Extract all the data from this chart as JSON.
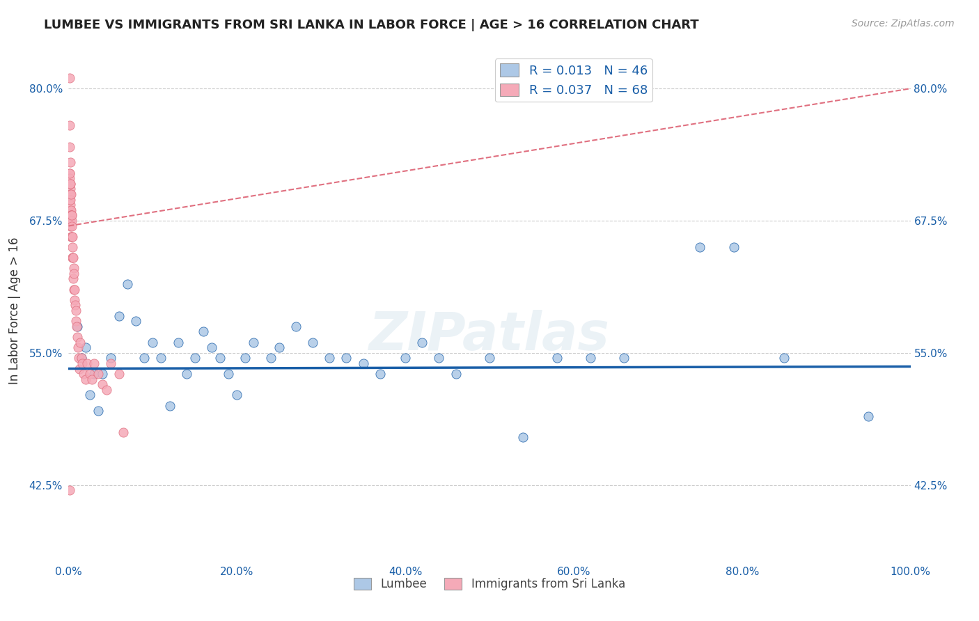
{
  "title": "LUMBEE VS IMMIGRANTS FROM SRI LANKA IN LABOR FORCE | AGE > 16 CORRELATION CHART",
  "source_text": "Source: ZipAtlas.com",
  "ylabel": "In Labor Force | Age > 16",
  "xlim": [
    0.0,
    1.0
  ],
  "ylim": [
    0.355,
    0.825
  ],
  "yticks": [
    0.425,
    0.55,
    0.675,
    0.8
  ],
  "ytick_labels": [
    "42.5%",
    "55.0%",
    "67.5%",
    "80.0%"
  ],
  "xticks": [
    0.0,
    0.2,
    0.4,
    0.6,
    0.8,
    1.0
  ],
  "xtick_labels": [
    "0.0%",
    "20.0%",
    "40.0%",
    "60.0%",
    "80.0%",
    "100.0%"
  ],
  "legend_labels": [
    "Lumbee",
    "Immigrants from Sri Lanka"
  ],
  "r_blue": 0.013,
  "n_blue": 46,
  "r_pink": 0.037,
  "n_pink": 68,
  "blue_color": "#adc8e6",
  "pink_color": "#f5aab8",
  "blue_line_color": "#1a5fa8",
  "pink_line_color": "#e07080",
  "watermark": "ZIPatlas",
  "blue_line_y0": 0.535,
  "blue_line_y1": 0.537,
  "pink_line_y0": 0.67,
  "pink_line_y1": 0.8,
  "blue_scatter_x": [
    0.01,
    0.015,
    0.02,
    0.025,
    0.03,
    0.035,
    0.04,
    0.05,
    0.06,
    0.07,
    0.08,
    0.09,
    0.1,
    0.11,
    0.12,
    0.13,
    0.14,
    0.15,
    0.16,
    0.17,
    0.18,
    0.19,
    0.2,
    0.21,
    0.22,
    0.24,
    0.25,
    0.27,
    0.29,
    0.31,
    0.33,
    0.35,
    0.37,
    0.4,
    0.42,
    0.44,
    0.46,
    0.5,
    0.54,
    0.58,
    0.62,
    0.66,
    0.75,
    0.79,
    0.85,
    0.95
  ],
  "blue_scatter_y": [
    0.575,
    0.545,
    0.555,
    0.51,
    0.53,
    0.495,
    0.53,
    0.545,
    0.585,
    0.615,
    0.58,
    0.545,
    0.56,
    0.545,
    0.5,
    0.56,
    0.53,
    0.545,
    0.57,
    0.555,
    0.545,
    0.53,
    0.51,
    0.545,
    0.56,
    0.545,
    0.555,
    0.575,
    0.56,
    0.545,
    0.545,
    0.54,
    0.53,
    0.545,
    0.56,
    0.545,
    0.53,
    0.545,
    0.47,
    0.545,
    0.545,
    0.545,
    0.65,
    0.65,
    0.545,
    0.49
  ],
  "pink_scatter_x": [
    0.001,
    0.001,
    0.001,
    0.001,
    0.001,
    0.0012,
    0.0012,
    0.0012,
    0.0015,
    0.0015,
    0.0015,
    0.0018,
    0.0018,
    0.002,
    0.002,
    0.002,
    0.002,
    0.0022,
    0.0022,
    0.0025,
    0.0025,
    0.0025,
    0.0028,
    0.003,
    0.003,
    0.003,
    0.0032,
    0.0035,
    0.0035,
    0.0038,
    0.004,
    0.004,
    0.0042,
    0.0045,
    0.0045,
    0.0048,
    0.005,
    0.0055,
    0.0055,
    0.006,
    0.006,
    0.0065,
    0.007,
    0.0075,
    0.008,
    0.0085,
    0.009,
    0.0095,
    0.01,
    0.011,
    0.012,
    0.013,
    0.014,
    0.015,
    0.016,
    0.018,
    0.02,
    0.022,
    0.025,
    0.028,
    0.03,
    0.035,
    0.04,
    0.045,
    0.05,
    0.06,
    0.065,
    0.001
  ],
  "pink_scatter_y": [
    0.81,
    0.765,
    0.745,
    0.72,
    0.7,
    0.715,
    0.695,
    0.675,
    0.72,
    0.7,
    0.68,
    0.705,
    0.685,
    0.73,
    0.71,
    0.69,
    0.67,
    0.7,
    0.68,
    0.71,
    0.695,
    0.675,
    0.685,
    0.7,
    0.68,
    0.66,
    0.68,
    0.68,
    0.66,
    0.675,
    0.68,
    0.66,
    0.67,
    0.66,
    0.64,
    0.65,
    0.64,
    0.64,
    0.62,
    0.63,
    0.61,
    0.625,
    0.6,
    0.61,
    0.595,
    0.59,
    0.58,
    0.575,
    0.565,
    0.555,
    0.545,
    0.535,
    0.56,
    0.545,
    0.54,
    0.53,
    0.525,
    0.54,
    0.53,
    0.525,
    0.54,
    0.53,
    0.52,
    0.515,
    0.54,
    0.53,
    0.475,
    0.42
  ]
}
